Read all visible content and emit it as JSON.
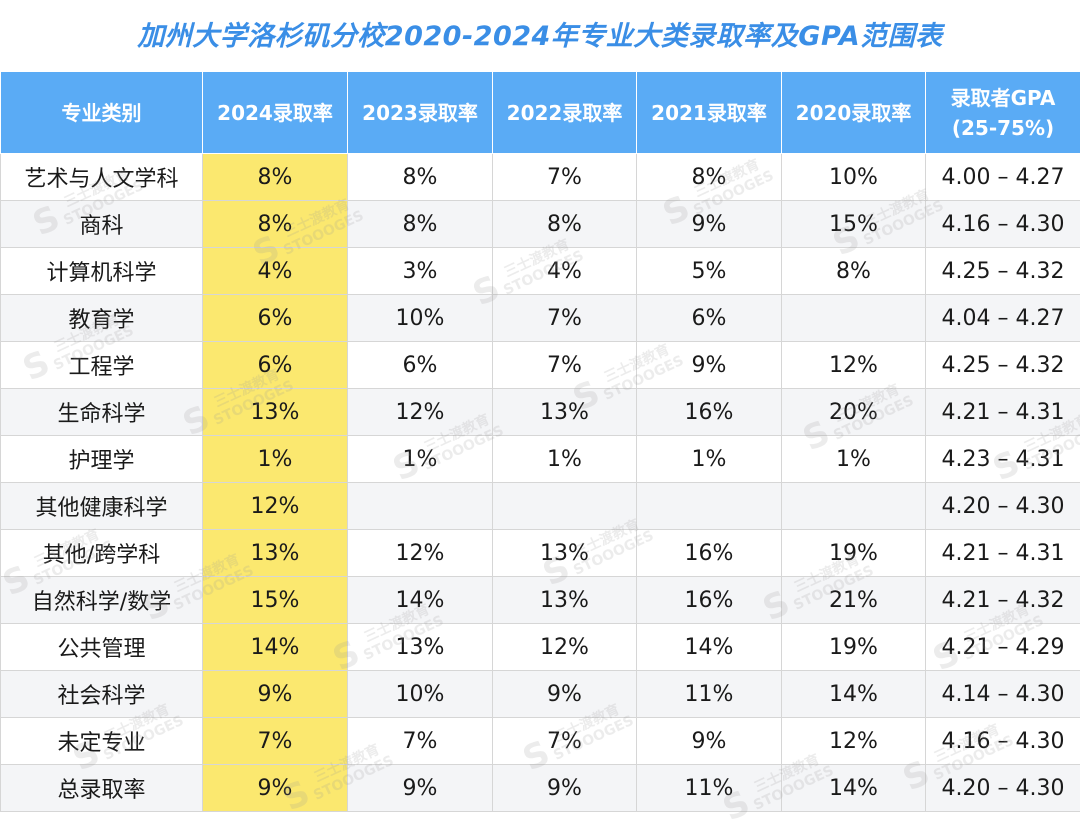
{
  "title": "加州大学洛杉矶分校2020-2024年专业大类录取率及GPA范围表",
  "watermark": {
    "cn": "三士渡教育",
    "en": "STOOOGES",
    "logo": "S"
  },
  "colors": {
    "header_bg": "#5aabf5",
    "highlight": "#fbe86f",
    "title": "#3a8ee6"
  },
  "table": {
    "headers": [
      "专业类别",
      "2024录取率",
      "2023录取率",
      "2022录取率",
      "2021录取率",
      "2020录取率",
      "录取者GPA",
      "(25-75%)"
    ],
    "rows": [
      [
        "艺术与人文学科",
        "8%",
        "8%",
        "7%",
        "8%",
        "10%",
        "4.00 – 4.27"
      ],
      [
        "商科",
        "8%",
        "8%",
        "8%",
        "9%",
        "15%",
        "4.16 – 4.30"
      ],
      [
        "计算机科学",
        "4%",
        "3%",
        "4%",
        "5%",
        "8%",
        "4.25 – 4.32"
      ],
      [
        "教育学",
        "6%",
        "10%",
        "7%",
        "6%",
        "",
        "4.04 – 4.27"
      ],
      [
        "工程学",
        "6%",
        "6%",
        "7%",
        "9%",
        "12%",
        "4.25 – 4.32"
      ],
      [
        "生命科学",
        "13%",
        "12%",
        "13%",
        "16%",
        "20%",
        "4.21 – 4.31"
      ],
      [
        "护理学",
        "1%",
        "1%",
        "1%",
        "1%",
        "1%",
        "4.23 – 4.31"
      ],
      [
        "其他健康科学",
        "12%",
        "",
        "",
        "",
        "",
        "4.20 – 4.30"
      ],
      [
        "其他/跨学科",
        "13%",
        "12%",
        "13%",
        "16%",
        "19%",
        "4.21 – 4.31"
      ],
      [
        "自然科学/数学",
        "15%",
        "14%",
        "13%",
        "16%",
        "21%",
        "4.21 – 4.32"
      ],
      [
        "公共管理",
        "14%",
        "13%",
        "12%",
        "14%",
        "19%",
        "4.21 – 4.29"
      ],
      [
        "社会科学",
        "9%",
        "10%",
        "9%",
        "11%",
        "14%",
        "4.14 – 4.30"
      ],
      [
        "未定专业",
        "7%",
        "7%",
        "7%",
        "9%",
        "12%",
        "4.16 – 4.30"
      ],
      [
        "总录取率",
        "9%",
        "9%",
        "9%",
        "11%",
        "14%",
        "4.20 – 4.30"
      ]
    ]
  }
}
